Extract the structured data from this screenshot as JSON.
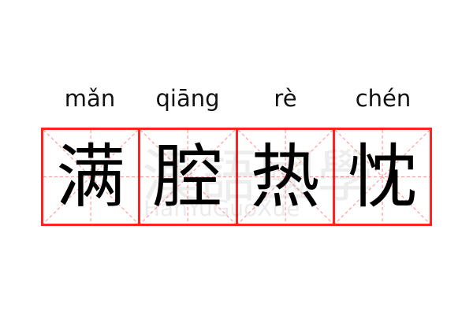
{
  "pinyin": [
    "mǎn",
    "qiāng",
    "rè",
    "chén"
  ],
  "characters": [
    "满",
    "腔",
    "热",
    "忱"
  ],
  "watermark": {
    "cn": "漢語國學",
    "en": "HanYuGuoXue"
  },
  "colors": {
    "border": "#ff2222",
    "guide": "#ff9999",
    "text": "#000000"
  }
}
